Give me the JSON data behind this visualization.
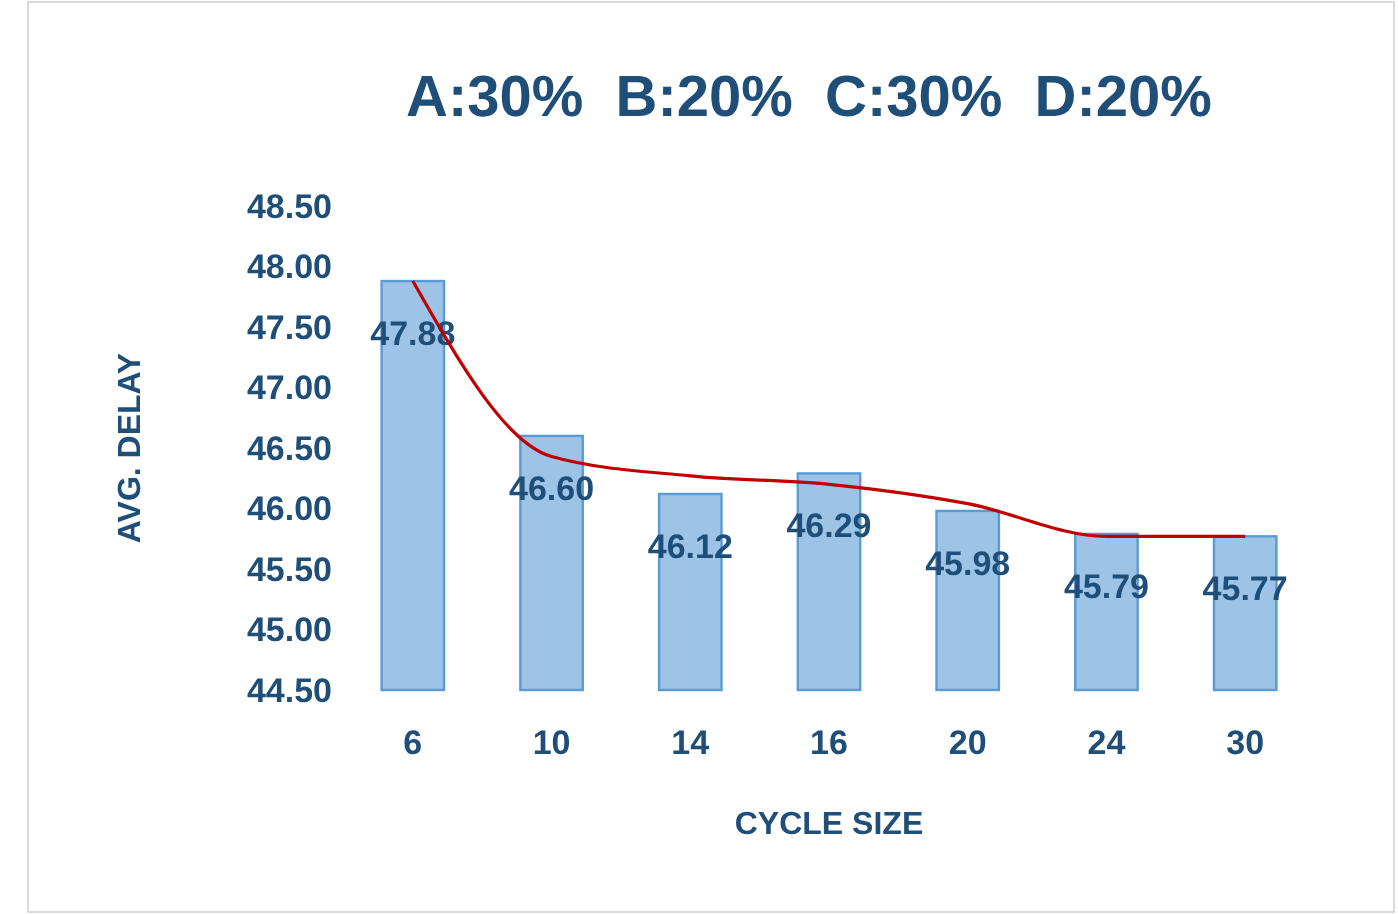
{
  "chart_data": {
    "type": "bar",
    "title": "A:30%  B:20%  C:30%  D:20%",
    "xlabel": "CYCLE SIZE",
    "ylabel": "AVG. DELAY",
    "categories": [
      "6",
      "10",
      "14",
      "16",
      "20",
      "24",
      "30"
    ],
    "series": [
      {
        "color": "#9dc3e6",
        "values": [
          47.88,
          46.6,
          46.12,
          46.29,
          45.98,
          45.79,
          45.77
        ],
        "value_labels": [
          "47.88",
          "46.60",
          "46.12",
          "46.29",
          "45.98",
          "45.79",
          "45.77"
        ]
      },
      {
        "type": "line",
        "color": "#c00000",
        "x": [
          "6",
          "10",
          "14",
          "16",
          "20",
          "24",
          "30"
        ],
        "values": [
          47.88,
          46.43,
          46.27,
          46.2,
          46.04,
          45.77,
          45.77
        ]
      }
    ],
    "ylim": [
      44.5,
      48.5
    ],
    "yticks": [
      {
        "value": 44.5,
        "label": "44.50"
      },
      {
        "value": 45,
        "label": "45.00"
      },
      {
        "value": 45.5,
        "label": "45.50"
      },
      {
        "value": 46,
        "label": "46.00"
      },
      {
        "value": 46.5,
        "label": "46.50"
      },
      {
        "value": 47,
        "label": "47.00"
      },
      {
        "value": 47.5,
        "label": "47.50"
      },
      {
        "value": 48,
        "label": "48.00"
      },
      {
        "value": 48.5,
        "label": "48.50"
      }
    ],
    "grid": false
  }
}
